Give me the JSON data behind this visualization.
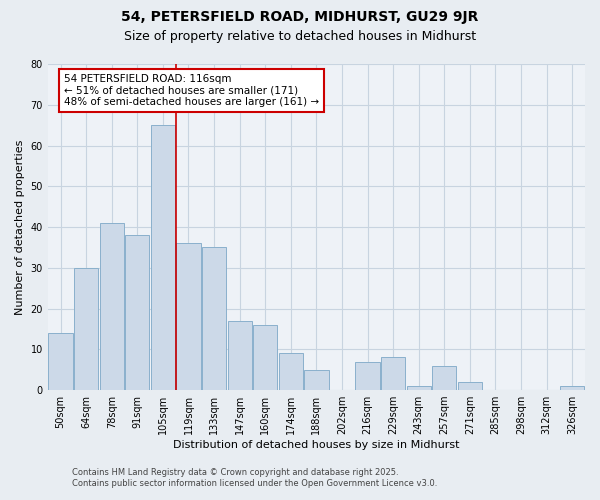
{
  "title": "54, PETERSFIELD ROAD, MIDHURST, GU29 9JR",
  "subtitle": "Size of property relative to detached houses in Midhurst",
  "xlabel": "Distribution of detached houses by size in Midhurst",
  "ylabel": "Number of detached properties",
  "categories": [
    "50sqm",
    "64sqm",
    "78sqm",
    "91sqm",
    "105sqm",
    "119sqm",
    "133sqm",
    "147sqm",
    "160sqm",
    "174sqm",
    "188sqm",
    "202sqm",
    "216sqm",
    "229sqm",
    "243sqm",
    "257sqm",
    "271sqm",
    "285sqm",
    "298sqm",
    "312sqm",
    "326sqm"
  ],
  "values": [
    14,
    30,
    41,
    38,
    65,
    36,
    35,
    17,
    16,
    9,
    5,
    0,
    7,
    8,
    1,
    6,
    2,
    0,
    0,
    0,
    1
  ],
  "bar_color": "#ccd9e8",
  "bar_edgecolor": "#8ab0cc",
  "vline_index": 5,
  "vline_color": "#cc0000",
  "annotation_line1": "54 PETERSFIELD ROAD: 116sqm",
  "annotation_line2": "← 51% of detached houses are smaller (171)",
  "annotation_line3": "48% of semi-detached houses are larger (161) →",
  "ylim": [
    0,
    80
  ],
  "yticks": [
    0,
    10,
    20,
    30,
    40,
    50,
    60,
    70,
    80
  ],
  "footer1": "Contains HM Land Registry data © Crown copyright and database right 2025.",
  "footer2": "Contains public sector information licensed under the Open Government Licence v3.0.",
  "bg_color": "#e8edf2",
  "plot_bg_color": "#eef2f7",
  "grid_color": "#c8d4e0",
  "title_fontsize": 10,
  "subtitle_fontsize": 9,
  "axis_label_fontsize": 8,
  "tick_fontsize": 7,
  "annotation_fontsize": 7.5,
  "footer_fontsize": 6
}
